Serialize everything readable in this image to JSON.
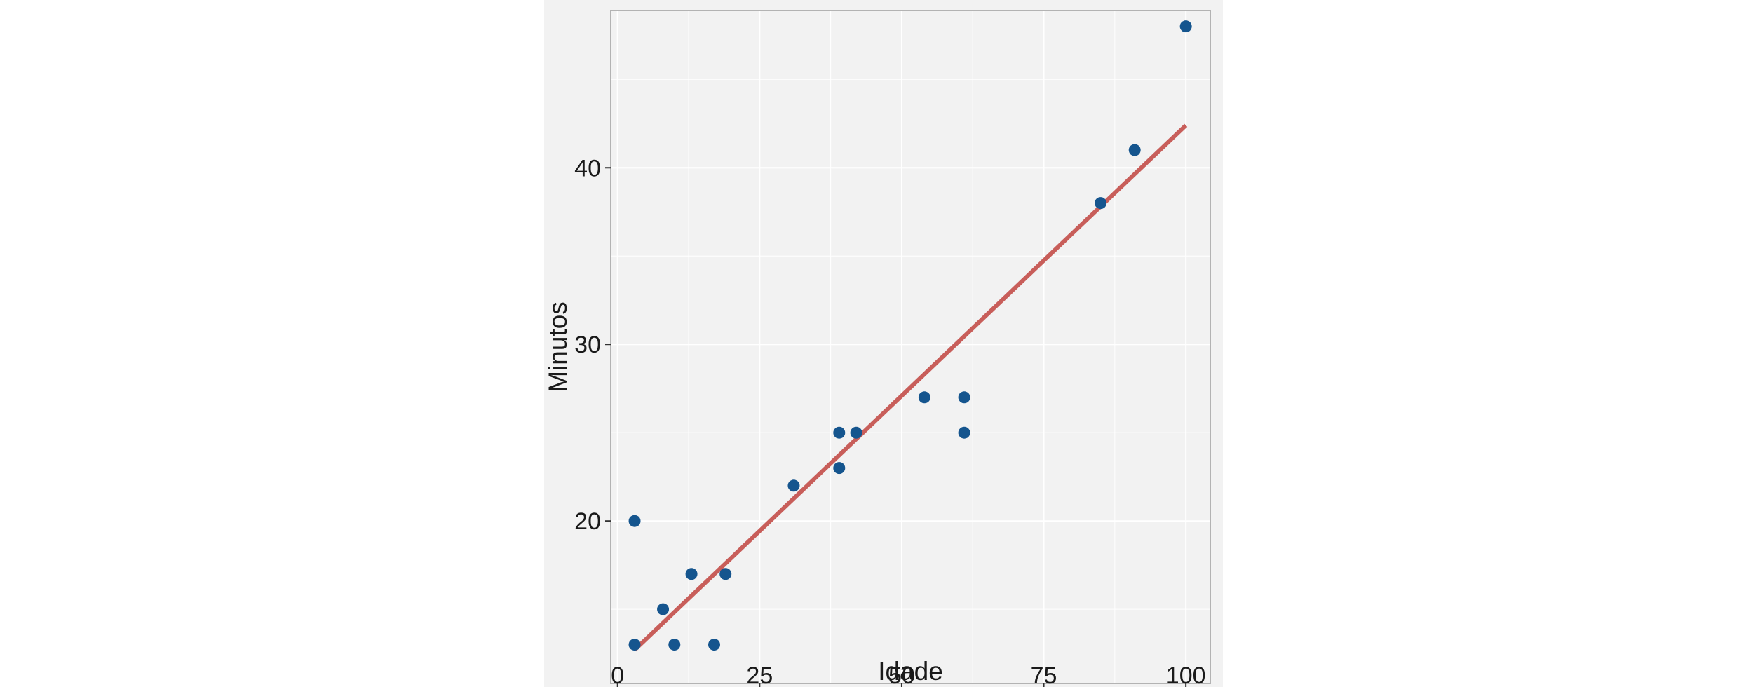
{
  "chart_data": {
    "type": "scatter",
    "title": "",
    "xlabel": "Idade",
    "ylabel": "Minutos",
    "xlim": [
      -1.2,
      104.3
    ],
    "ylim": [
      10.8,
      48.9
    ],
    "xticks": [
      0,
      25,
      50,
      75,
      100
    ],
    "yticks": [
      20,
      30,
      40
    ],
    "grid": true,
    "legend": "none",
    "colors": {
      "points": "#15558e",
      "fit_line": "#c85e5a",
      "panel_bg": "#f2f2f2",
      "grid": "#ffffff",
      "border": "#b3b3b3",
      "text": "#1a1a1a"
    },
    "series": [
      {
        "type": "scatter",
        "points": [
          {
            "x": 3,
            "y": 13
          },
          {
            "x": 3,
            "y": 20
          },
          {
            "x": 8,
            "y": 15
          },
          {
            "x": 10,
            "y": 13
          },
          {
            "x": 13,
            "y": 17
          },
          {
            "x": 17,
            "y": 13
          },
          {
            "x": 19,
            "y": 17
          },
          {
            "x": 31,
            "y": 22
          },
          {
            "x": 39,
            "y": 25
          },
          {
            "x": 39,
            "y": 23
          },
          {
            "x": 42,
            "y": 25
          },
          {
            "x": 54,
            "y": 27
          },
          {
            "x": 61,
            "y": 27
          },
          {
            "x": 61,
            "y": 25
          },
          {
            "x": 85,
            "y": 38
          },
          {
            "x": 91,
            "y": 41
          },
          {
            "x": 100,
            "y": 48
          }
        ]
      },
      {
        "type": "line",
        "points": [
          {
            "x": 3,
            "y": 12.7
          },
          {
            "x": 100,
            "y": 42.4
          }
        ]
      }
    ]
  }
}
